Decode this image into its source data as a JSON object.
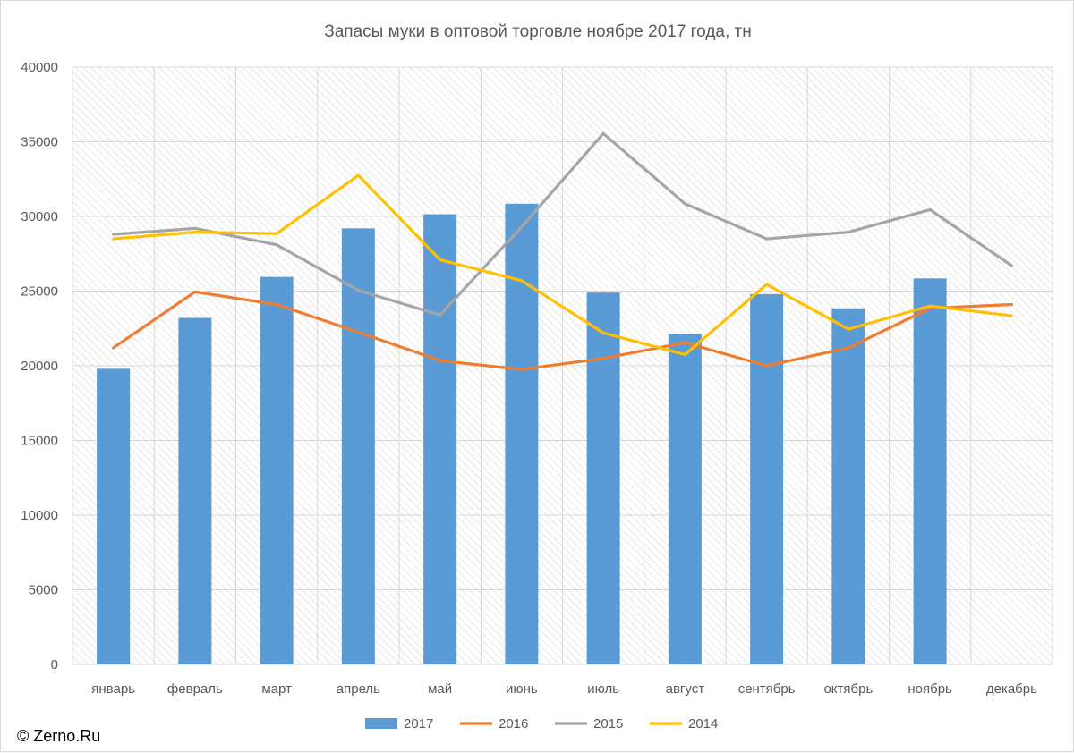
{
  "chart_data": {
    "type": "bar",
    "title": "Запасы муки в оптовой торговле ноябре 2017 года, тн",
    "categories": [
      "январь",
      "февраль",
      "март",
      "апрель",
      "май",
      "июнь",
      "июль",
      "август",
      "сентябрь",
      "октябрь",
      "ноябрь",
      "декабрь"
    ],
    "ylim": [
      0,
      40000
    ],
    "yticks": [
      0,
      5000,
      10000,
      15000,
      20000,
      25000,
      30000,
      35000,
      40000
    ],
    "grid": true,
    "legend_position": "bottom",
    "series": [
      {
        "name": "2017",
        "type": "bar",
        "color": "#5b9bd5",
        "values": [
          19800,
          23200,
          25950,
          29200,
          30150,
          30850,
          24900,
          22100,
          24800,
          23850,
          25850,
          null
        ]
      },
      {
        "name": "2016",
        "type": "line",
        "color": "#ed7d31",
        "values": [
          21200,
          24950,
          24100,
          22250,
          20350,
          19750,
          20500,
          21550,
          20000,
          21200,
          23850,
          24100
        ]
      },
      {
        "name": "2015",
        "type": "line",
        "color": "#a5a5a5",
        "values": [
          28800,
          29200,
          28100,
          25050,
          23400,
          29300,
          35550,
          30850,
          28500,
          28950,
          30450,
          26700
        ]
      },
      {
        "name": "2014",
        "type": "line",
        "color": "#ffc000",
        "values": [
          28500,
          28950,
          28850,
          32750,
          27100,
          25700,
          22200,
          20750,
          25450,
          22450,
          24000,
          23350
        ]
      }
    ]
  },
  "copyright": "© Zerno.Ru"
}
